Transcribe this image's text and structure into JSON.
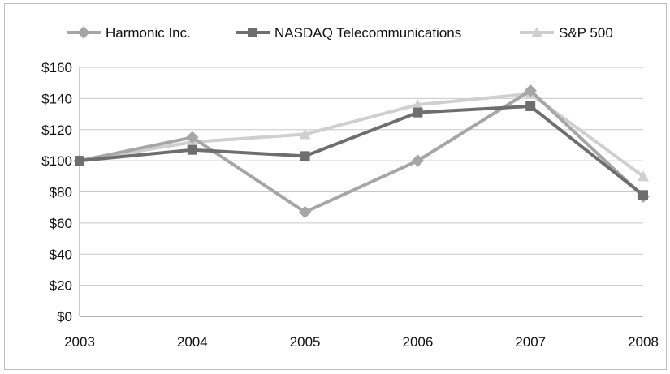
{
  "chart_data": {
    "type": "line",
    "title": "",
    "xlabel": "",
    "ylabel": "",
    "x": [
      "2003",
      "2004",
      "2005",
      "2006",
      "2007",
      "2008"
    ],
    "ylim": [
      0,
      160
    ],
    "y_ticks": [
      0,
      20,
      40,
      60,
      80,
      100,
      120,
      140,
      160
    ],
    "y_tick_labels": [
      "$0",
      "$20",
      "$40",
      "$60",
      "$80",
      "$100",
      "$120",
      "$140",
      "$160"
    ],
    "grid": "horizontal",
    "legend_position": "top",
    "series": [
      {
        "name": "Harmonic Inc.",
        "marker": "diamond",
        "color": "#a6a6a6",
        "values": [
          100,
          115,
          67,
          100,
          145,
          77
        ]
      },
      {
        "name": "NASDAQ Telecommunications",
        "marker": "square",
        "color": "#6e6e6e",
        "values": [
          100,
          107,
          103,
          131,
          135,
          78
        ]
      },
      {
        "name": "S&P 500",
        "marker": "triangle",
        "color": "#cfcfcf",
        "values": [
          100,
          112,
          117,
          136,
          143,
          90
        ]
      }
    ]
  }
}
